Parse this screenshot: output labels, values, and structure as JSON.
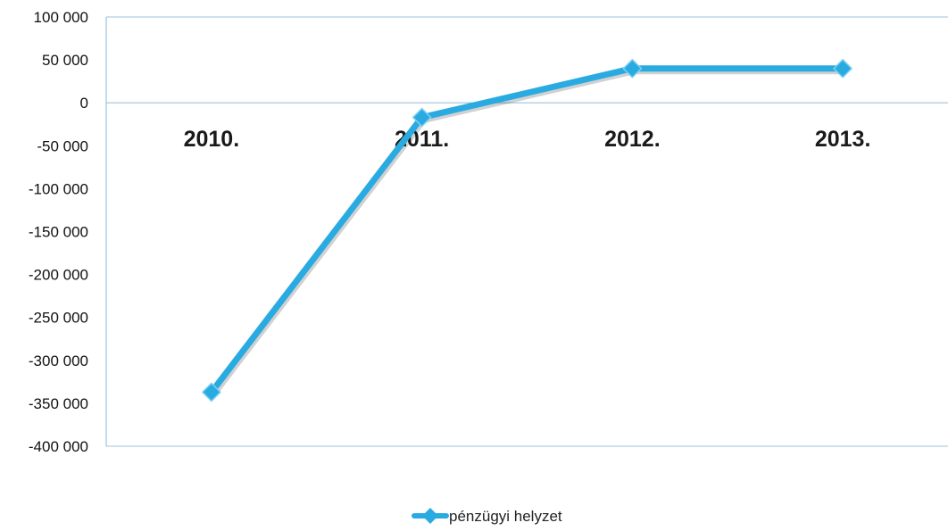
{
  "chart_data": {
    "type": "line",
    "categories": [
      "2010.",
      "2011.",
      "2012.",
      "2013."
    ],
    "series": [
      {
        "name": "pénzügyi helyzet",
        "values": [
          -337000,
          -17000,
          40000,
          40000
        ],
        "color": "#29abe2"
      }
    ],
    "y_ticks": [
      "100 000",
      "50 000",
      "0",
      "-50 000",
      "-100 000",
      "-150 000",
      "-200 000",
      "-250 000",
      "-300 000",
      "-350 000",
      "-400 000"
    ],
    "ylim": [
      -400000,
      100000
    ],
    "axis_color": "#9cc3dd",
    "grid": false,
    "legend_position": "bottom"
  }
}
